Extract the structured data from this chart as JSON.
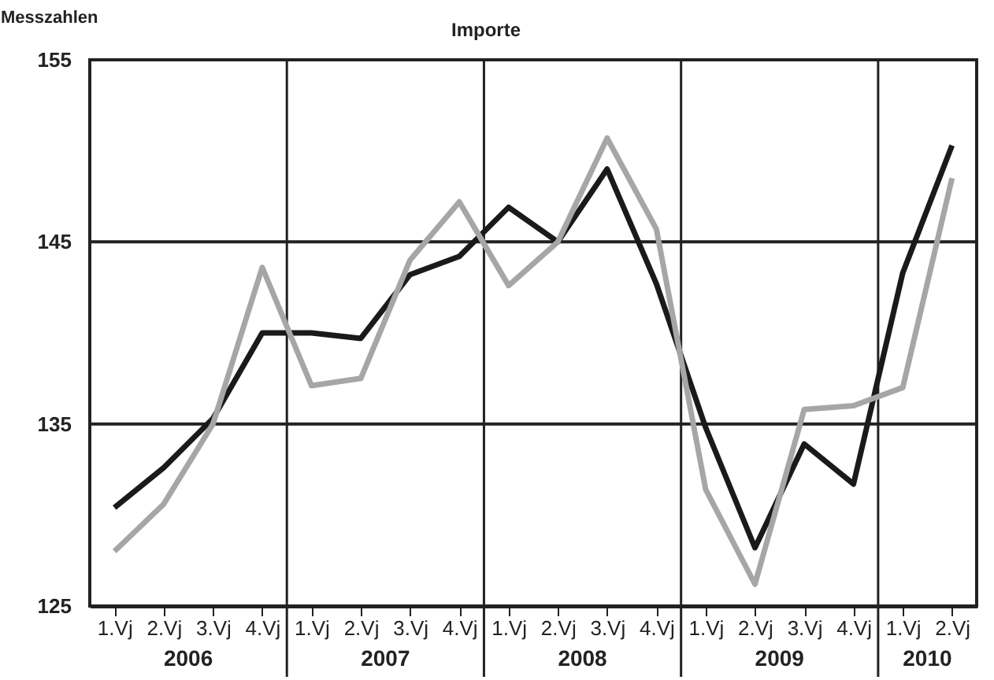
{
  "chart_data": {
    "type": "line",
    "title": "Importe",
    "ylabel": "Messzahlen",
    "categories": [
      "1.Vj",
      "2.Vj",
      "3.Vj",
      "4.Vj",
      "1.Vj",
      "2.Vj",
      "3.Vj",
      "4.Vj",
      "1.Vj",
      "2.Vj",
      "3.Vj",
      "4.Vj",
      "1.Vj",
      "2.Vj",
      "3.Vj",
      "4.Vj",
      "1.Vj",
      "2.Vj"
    ],
    "annotations": [
      "2006",
      "2007",
      "2008",
      "2009",
      "2010"
    ],
    "series": [
      {
        "color": "#1a1a1a",
        "values": [
          130.4,
          132.6,
          135.3,
          140,
          140,
          139.7,
          143.2,
          144.2,
          146.9,
          145,
          149,
          142.7,
          134.8,
          128.2,
          133.9,
          131.7,
          143.3,
          150.3
        ]
      },
      {
        "color": "#a6a6a6",
        "values": [
          128,
          130.6,
          135,
          143.6,
          137.1,
          137.5,
          144,
          147.2,
          142.6,
          145,
          150.7,
          145.7,
          131.4,
          126.2,
          135.8,
          136,
          137,
          148.5
        ]
      }
    ],
    "ylim": [
      125,
      155
    ],
    "yticks": [
      125,
      135,
      145,
      155
    ],
    "grid": true,
    "marker": "none",
    "line_style": "solid"
  }
}
